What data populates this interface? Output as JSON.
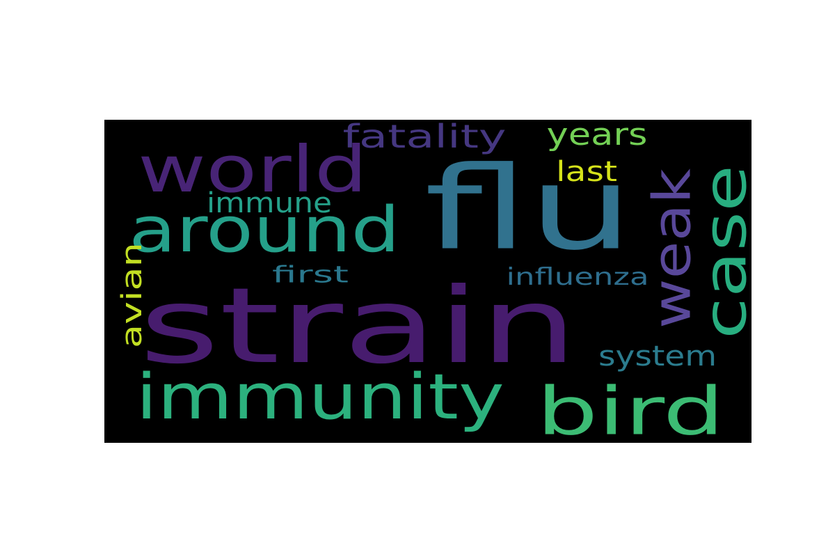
{
  "background_color": "#000000",
  "words": [
    {
      "id": "strain",
      "text": "strain",
      "color": "#471c6e",
      "orientation": "horizontal"
    },
    {
      "id": "flu",
      "text": "flu",
      "color": "#31728e",
      "orientation": "horizontal"
    },
    {
      "id": "world",
      "text": "world",
      "color": "#482476",
      "orientation": "horizontal"
    },
    {
      "id": "around",
      "text": "around",
      "color": "#25a08a",
      "orientation": "horizontal"
    },
    {
      "id": "immunity",
      "text": "immunity",
      "color": "#2cb17e",
      "orientation": "horizontal"
    },
    {
      "id": "bird",
      "text": "bird",
      "color": "#3cbc74",
      "orientation": "horizontal"
    },
    {
      "id": "weak",
      "text": "weak",
      "color": "#59489a",
      "orientation": "vertical"
    },
    {
      "id": "case",
      "text": "case",
      "color": "#28ae80",
      "orientation": "vertical"
    },
    {
      "id": "fatality",
      "text": "fatality",
      "color": "#453781",
      "orientation": "horizontal"
    },
    {
      "id": "years",
      "text": "years",
      "color": "#73d055",
      "orientation": "horizontal"
    },
    {
      "id": "last",
      "text": "last",
      "color": "#d5e21a",
      "orientation": "horizontal"
    },
    {
      "id": "immune",
      "text": "immune",
      "color": "#25a18a",
      "orientation": "horizontal"
    },
    {
      "id": "first",
      "text": "first",
      "color": "#2a788e",
      "orientation": "horizontal"
    },
    {
      "id": "influenza",
      "text": "influenza",
      "color": "#2e6e8e",
      "orientation": "horizontal"
    },
    {
      "id": "avian",
      "text": "avian",
      "color": "#c2df23",
      "orientation": "vertical"
    },
    {
      "id": "system",
      "text": "system",
      "color": "#2b7c8e",
      "orientation": "horizontal"
    }
  ]
}
